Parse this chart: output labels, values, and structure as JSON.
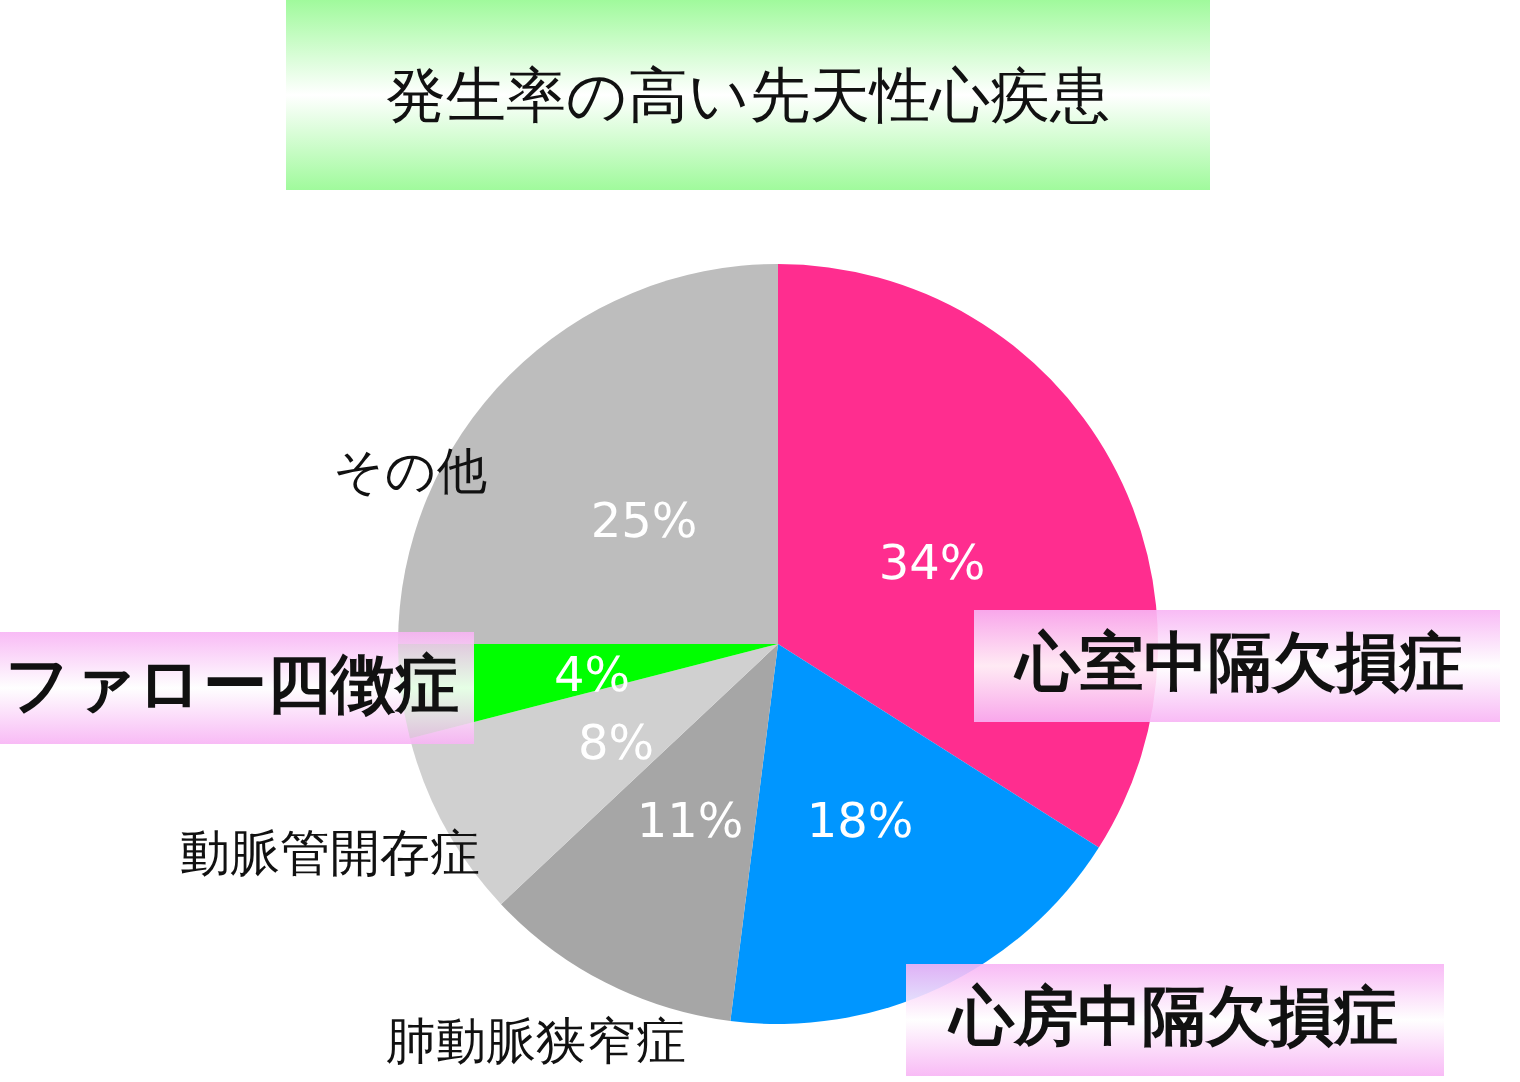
{
  "chart_data": {
    "type": "pie",
    "title": "発生率の高い先天性心疾患",
    "categories": [
      "心室中隔欠損症",
      "心房中隔欠損症",
      "肺動脈狭窄症",
      "動脈管開存症",
      "ファロー四徴症",
      "その他"
    ],
    "values": [
      34,
      18,
      11,
      8,
      4,
      25
    ],
    "value_labels": [
      "34%",
      "18%",
      "11%",
      "8%",
      "4%",
      "25%"
    ],
    "colors": [
      "#ff2d8f",
      "#0096ff",
      "#a6a6a6",
      "#d0d0d0",
      "#00ff00",
      "#bdbdbd"
    ]
  }
}
